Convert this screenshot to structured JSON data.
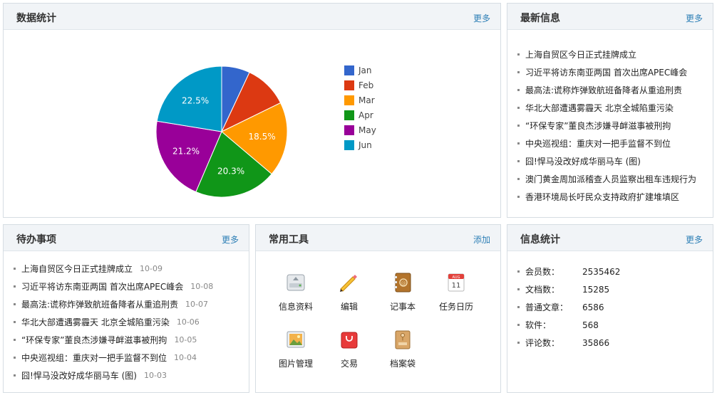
{
  "stats_panel": {
    "title": "数据统计",
    "more": "更多"
  },
  "news_panel": {
    "title": "最新信息",
    "more": "更多",
    "items": [
      "上海自贸区今日正式挂牌成立",
      "习近平将访东南亚两国 首次出席APEC峰会",
      "最高法:谎称炸弹致航班备降者从重追刑责",
      "华北大部遭遇雾霾天 北京全城陷重污染",
      "“环保专家”董良杰涉嫌寻衅滋事被刑拘",
      "中央巡视组：重庆对一把手监督不到位",
      "囧!悍马没改好成华丽马车 (图)",
      "澳门黄金周加派稽查人员监察出租车违规行为",
      "香港环境局长吁民众支持政府扩建堆填区"
    ]
  },
  "todo_panel": {
    "title": "待办事项",
    "more": "更多",
    "items": [
      {
        "text": "上海自贸区今日正式挂牌成立",
        "date": "10-09"
      },
      {
        "text": "习近平将访东南亚两国 首次出席APEC峰会",
        "date": "10-08"
      },
      {
        "text": "最高法:谎称炸弹致航班备降者从重追刑责",
        "date": "10-07"
      },
      {
        "text": "华北大部遭遇雾霾天 北京全城陷重污染",
        "date": "10-06"
      },
      {
        "text": "“环保专家”董良杰涉嫌寻衅滋事被刑拘",
        "date": "10-05"
      },
      {
        "text": "中央巡视组：重庆对一把手监督不到位",
        "date": "10-04"
      },
      {
        "text": "囧!悍马没改好成华丽马车 (图)",
        "date": "10-03"
      }
    ]
  },
  "tools_panel": {
    "title": "常用工具",
    "add": "添加",
    "tools": [
      {
        "label": "信息资料",
        "icon": "hard-drive-icon"
      },
      {
        "label": "编辑",
        "icon": "pencil-icon"
      },
      {
        "label": "记事本",
        "icon": "address-book-icon"
      },
      {
        "label": "任务日历",
        "icon": "calendar-icon"
      },
      {
        "label": "图片管理",
        "icon": "picture-icon"
      },
      {
        "label": "交易",
        "icon": "shopping-bag-icon"
      },
      {
        "label": "档案袋",
        "icon": "archive-envelope-icon"
      }
    ],
    "calendar_month": "AUG",
    "calendar_day": "11"
  },
  "info_panel": {
    "title": "信息统计",
    "more": "更多",
    "rows": [
      {
        "key": "会员数：",
        "value": "2535462"
      },
      {
        "key": "文档数：",
        "value": "15285"
      },
      {
        "key": "普通文章：",
        "value": "6586"
      },
      {
        "key": "软件：",
        "value": "568"
      },
      {
        "key": "评论数：",
        "value": "35866"
      }
    ]
  },
  "chart_data": {
    "type": "pie",
    "categories": [
      "Jan",
      "Feb",
      "Mar",
      "Apr",
      "May",
      "Jun"
    ],
    "values": [
      7.0,
      10.8,
      18.5,
      20.3,
      21.2,
      22.5
    ],
    "data_labels": [
      "",
      "",
      "18.5%",
      "20.3%",
      "21.2%",
      "22.5%"
    ],
    "colors": [
      "#3366cc",
      "#dc3912",
      "#ff9900",
      "#109618",
      "#990099",
      "#0099c6"
    ],
    "legend_position": "right"
  }
}
